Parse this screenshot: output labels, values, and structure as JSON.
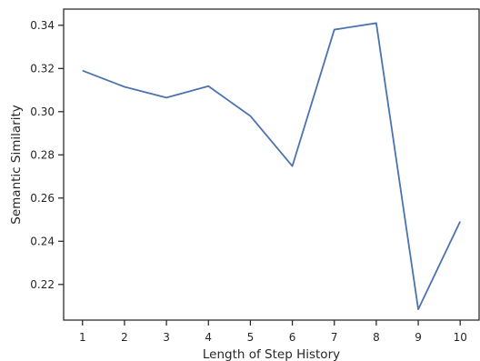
{
  "chart_data": {
    "type": "line",
    "title": "",
    "xlabel": "Length of Step History",
    "ylabel": "Semantic Similarity",
    "x": [
      1,
      2,
      3,
      4,
      5,
      6,
      7,
      8,
      9,
      10
    ],
    "xticks": [
      "1",
      "2",
      "3",
      "4",
      "5",
      "6",
      "7",
      "8",
      "9",
      "10"
    ],
    "yticks": [
      "0.22",
      "0.24",
      "0.26",
      "0.28",
      "0.30",
      "0.32",
      "0.34"
    ],
    "ytick_values": [
      0.22,
      0.24,
      0.26,
      0.28,
      0.3,
      0.32,
      0.34
    ],
    "xlim": [
      0.55,
      10.45
    ],
    "ylim": [
      0.2035,
      0.3475
    ],
    "grid": false,
    "series": [
      {
        "values": [
          0.319,
          0.3115,
          0.3065,
          0.3118,
          0.298,
          0.2748,
          0.338,
          0.341,
          0.2085,
          0.2492
        ],
        "color": "#4c72b0"
      }
    ],
    "colors": {
      "axis": "#262626",
      "line": "#4c72b0"
    }
  }
}
